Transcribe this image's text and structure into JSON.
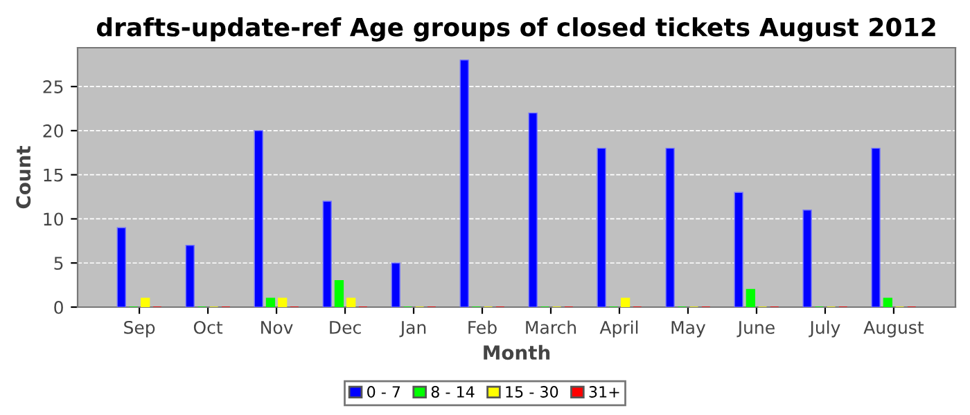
{
  "chart_data": {
    "type": "bar",
    "title": "drafts-update-ref Age groups of closed tickets August 2012",
    "xlabel": "Month",
    "ylabel": "Count",
    "categories": [
      "Sep",
      "Oct",
      "Nov",
      "Dec",
      "Jan",
      "Feb",
      "March",
      "April",
      "May",
      "June",
      "July",
      "August"
    ],
    "series": [
      {
        "name": "0 - 7",
        "color": "#0000ff",
        "values": [
          9,
          7,
          20,
          12,
          5,
          28,
          22,
          18,
          18,
          13,
          11,
          18
        ]
      },
      {
        "name": "8 - 14",
        "color": "#00ff00",
        "values": [
          0,
          0,
          1,
          3,
          0,
          0,
          0,
          0,
          0,
          2,
          0,
          1
        ]
      },
      {
        "name": "15 - 30",
        "color": "#ffff00",
        "values": [
          1,
          0,
          1,
          1,
          0,
          0,
          0,
          1,
          0,
          0,
          0,
          0
        ]
      },
      {
        "name": "31+",
        "color": "#ff0000",
        "values": [
          0,
          0,
          0,
          0,
          0,
          0,
          0,
          0,
          0,
          0,
          0,
          0
        ]
      }
    ],
    "ylim": [
      0,
      29.4
    ],
    "yticks": [
      0,
      5,
      10,
      15,
      20,
      25
    ],
    "grid": "y",
    "legend": "bottom"
  }
}
